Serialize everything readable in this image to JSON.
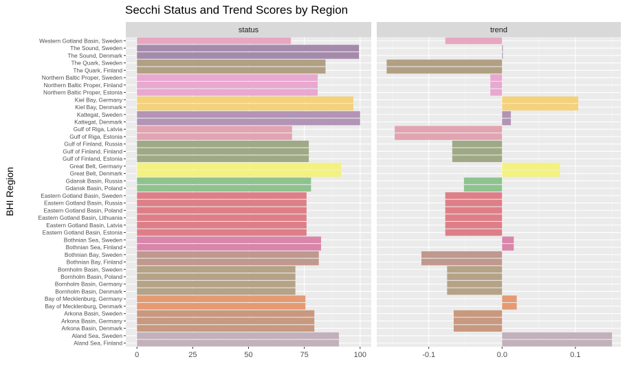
{
  "chart_data": {
    "type": "bar",
    "orientation": "horizontal",
    "title": "Secchi Status and Trend Scores by Region",
    "ylabel": "BHI Region",
    "xlabel": "",
    "grid": true,
    "legend": "none",
    "categories": [
      "Western Gotland Basin, Sweden",
      "The Sound, Sweden",
      "The Sound, Denmark",
      "The Quark, Sweden",
      "The Quark, Finland",
      "Northern Baltic Proper, Sweden",
      "Northern Baltic Proper, Finland",
      "Northern Baltic Proper, Estonia",
      "Kiel Bay, Germany",
      "Kiel Bay, Denmark",
      "Kattegat, Sweden",
      "Kattegat, Denmark",
      "Gulf of Riga, Latvia",
      "Gulf of Riga, Estonia",
      "Gulf of Finland, Russia",
      "Gulf of Finland, Finland",
      "Gulf of Finland, Estonia",
      "Great Belt, Germany",
      "Great Belt, Denmark",
      "Gdansk Basin, Russia",
      "Gdansk Basin, Poland",
      "Eastern Gotland Basin, Sweden",
      "Eastern Gotland Basin, Russia",
      "Eastern Gotland Basin, Poland",
      "Eastern Gotland Basin, Lithuania",
      "Eastern Gotland Basin, Latvia",
      "Eastern Gotland Basin, Estonia",
      "Bothnian Sea, Sweden",
      "Bothnian Sea, Finland",
      "Bothnian Bay, Sweden",
      "Bothnian Bay, Finland",
      "Bornholm Basin, Sweden",
      "Bornholm Basin, Poland",
      "Bornholm Basin, Germany",
      "Bornholm Basin, Denmark",
      "Bay of Mecklenburg, Germany",
      "Bay of Mecklenburg, Denmark",
      "Arkona Basin, Sweden",
      "Arkona Basin, Germany",
      "Arkona Basin, Denmark",
      "Aland Sea, Sweden",
      "Aland Sea, Finland"
    ],
    "bar_colors": [
      "#e8a7c1",
      "#a58bab",
      "#a58bab",
      "#b1a083",
      "#b1a083",
      "#e8a8d0",
      "#e8a8d0",
      "#e8a8d0",
      "#f4d27c",
      "#f4d27c",
      "#b294b6",
      "#b294b6",
      "#e2a4b1",
      "#e2a4b1",
      "#9fa985",
      "#9fa985",
      "#9fa985",
      "#f3f27e",
      "#f3f27e",
      "#8ec38f",
      "#8ec38f",
      "#de7f88",
      "#de7f88",
      "#de7f88",
      "#de7f88",
      "#de7f88",
      "#de7f88",
      "#d986aa",
      "#d986aa",
      "#c0988e",
      "#c0988e",
      "#b5a287",
      "#b5a287",
      "#b5a287",
      "#b5a287",
      "#e59a72",
      "#e59a72",
      "#c8987f",
      "#c8987f",
      "#c8987f",
      "#c2b0ba",
      "#c2b0ba"
    ],
    "facets": [
      {
        "name": "status",
        "xlim": [
          -5,
          105
        ],
        "ticks": [
          0,
          25,
          50,
          75,
          100
        ],
        "tick_labels": [
          "0",
          "25",
          "50",
          "75",
          "100"
        ],
        "values": [
          69,
          99.5,
          99.5,
          84.5,
          84.5,
          81,
          81,
          81,
          97,
          97,
          100,
          100,
          69.5,
          69.5,
          77,
          77,
          77,
          91.5,
          91.5,
          78,
          78,
          76,
          76,
          76,
          76,
          76,
          76,
          82.5,
          82.5,
          81.5,
          81.5,
          71,
          71,
          71,
          71,
          75.5,
          75.5,
          79.5,
          79.5,
          79.5,
          90.5,
          90.5
        ]
      },
      {
        "name": "trend",
        "xlim": [
          -0.171,
          0.162
        ],
        "ticks": [
          -0.1,
          0,
          0.1
        ],
        "tick_labels": [
          "-0.1",
          "0.0",
          "0.1"
        ],
        "values": [
          -0.0775,
          0.001,
          0.001,
          -0.1575,
          -0.1575,
          -0.016,
          -0.016,
          -0.016,
          0.104,
          0.104,
          0.012,
          0.012,
          -0.1465,
          -0.1465,
          -0.068,
          -0.068,
          -0.068,
          0.079,
          0.079,
          -0.052,
          -0.052,
          -0.0775,
          -0.0775,
          -0.0775,
          -0.0775,
          -0.0775,
          -0.0775,
          0.016,
          0.016,
          -0.11,
          -0.11,
          -0.075,
          -0.075,
          -0.075,
          -0.075,
          0.02,
          0.02,
          -0.066,
          -0.066,
          -0.066,
          0.15,
          0.15
        ]
      }
    ]
  }
}
